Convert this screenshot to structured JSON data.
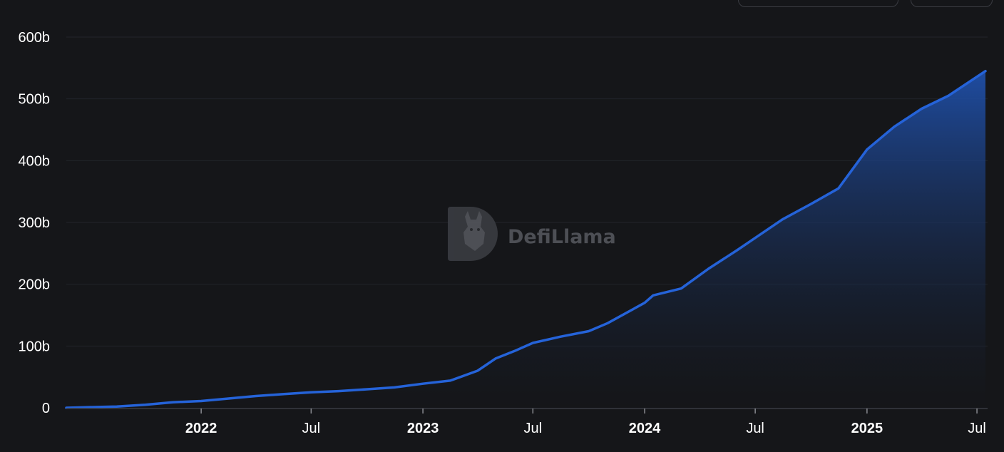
{
  "controls": {
    "left_button": "",
    "right_button": ""
  },
  "watermark": {
    "text": "DefiLlama",
    "logo_icon": "defillama-logo-icon"
  },
  "colors": {
    "background": "#151619",
    "line": "#2563d9",
    "area_top": "#1f4fa8",
    "area_bottom": "#151619",
    "grid": "#22242a",
    "axis": "#3a3c42",
    "text": "#ffffff"
  },
  "chart_data": {
    "type": "area",
    "title": "",
    "xlabel": "",
    "ylabel": "",
    "x_range": [
      "2021-05-24",
      "2025-07-15"
    ],
    "ylim": [
      0,
      600
    ],
    "y_unit": "b",
    "yticks": [
      {
        "value": 0,
        "label": "0"
      },
      {
        "value": 100,
        "label": "100b"
      },
      {
        "value": 200,
        "label": "200b"
      },
      {
        "value": 300,
        "label": "300b"
      },
      {
        "value": 400,
        "label": "400b"
      },
      {
        "value": 500,
        "label": "500b"
      },
      {
        "value": 600,
        "label": "600b"
      }
    ],
    "xticks": [
      {
        "date": "2022-01-01",
        "label": "2022",
        "bold": true
      },
      {
        "date": "2022-07-01",
        "label": "Jul",
        "bold": false
      },
      {
        "date": "2023-01-01",
        "label": "2023",
        "bold": true
      },
      {
        "date": "2023-07-01",
        "label": "Jul",
        "bold": false
      },
      {
        "date": "2024-01-01",
        "label": "2024",
        "bold": true
      },
      {
        "date": "2024-07-01",
        "label": "Jul",
        "bold": false
      },
      {
        "date": "2025-01-01",
        "label": "2025",
        "bold": true
      },
      {
        "date": "2025-07-01",
        "label": "Jul",
        "bold": false
      }
    ],
    "grid": true,
    "legend": "none",
    "series": [
      {
        "points": [
          [
            "2021-05-24",
            0
          ],
          [
            "2021-07-01",
            1
          ],
          [
            "2021-08-15",
            2
          ],
          [
            "2021-10-01",
            5
          ],
          [
            "2021-11-15",
            9
          ],
          [
            "2022-01-01",
            11
          ],
          [
            "2022-02-15",
            15
          ],
          [
            "2022-04-01",
            19
          ],
          [
            "2022-05-15",
            22
          ],
          [
            "2022-07-01",
            25
          ],
          [
            "2022-08-15",
            27
          ],
          [
            "2022-10-01",
            30
          ],
          [
            "2022-11-15",
            33
          ],
          [
            "2023-01-01",
            39
          ],
          [
            "2023-02-15",
            44
          ],
          [
            "2023-04-01",
            60
          ],
          [
            "2023-05-01",
            80
          ],
          [
            "2023-06-01",
            92
          ],
          [
            "2023-07-01",
            105
          ],
          [
            "2023-08-15",
            115
          ],
          [
            "2023-10-01",
            124
          ],
          [
            "2023-11-01",
            137
          ],
          [
            "2024-01-01",
            170
          ],
          [
            "2024-01-15",
            182
          ],
          [
            "2024-03-01",
            193
          ],
          [
            "2024-04-15",
            225
          ],
          [
            "2024-06-01",
            255
          ],
          [
            "2024-07-01",
            275
          ],
          [
            "2024-08-15",
            305
          ],
          [
            "2024-10-01",
            330
          ],
          [
            "2024-11-15",
            355
          ],
          [
            "2025-01-01",
            418
          ],
          [
            "2025-02-15",
            455
          ],
          [
            "2025-04-01",
            484
          ],
          [
            "2025-05-15",
            505
          ],
          [
            "2025-07-15",
            545
          ]
        ]
      }
    ]
  }
}
